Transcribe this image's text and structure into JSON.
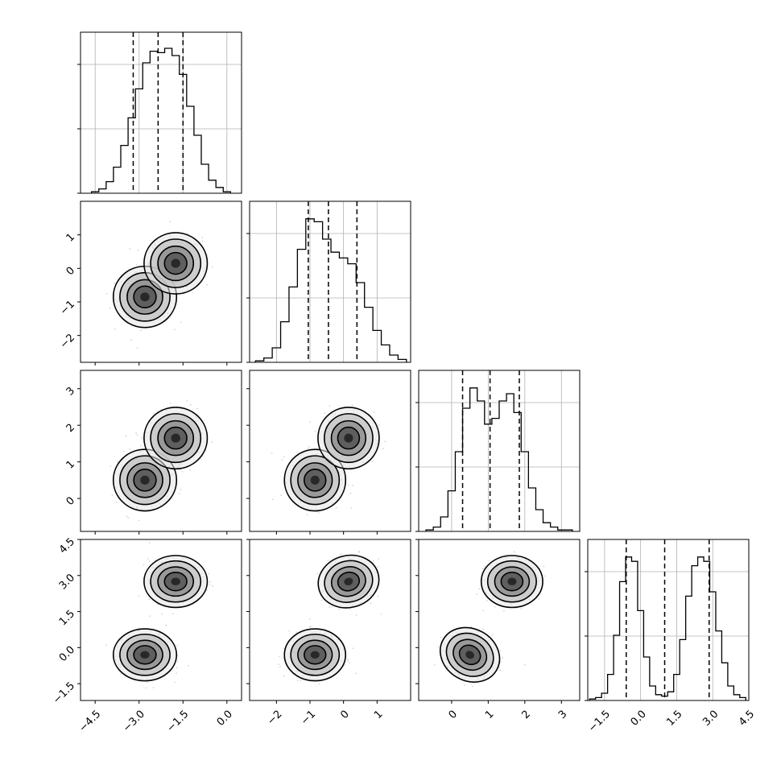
{
  "chart_data": {
    "type": "corner",
    "params": 4,
    "grid": true,
    "diagonal_histograms": [
      {
        "param": 0,
        "xlim": [
          -5.0,
          0.5
        ],
        "bins": [
          -4.5,
          -4.25,
          -4.0,
          -3.75,
          -3.5,
          -3.25,
          -3.0,
          -2.75,
          -2.5,
          -2.25,
          -2.0,
          -1.75,
          -1.5,
          -1.25,
          -1.0,
          -0.75,
          -0.5,
          -0.25,
          0.0
        ],
        "counts": [
          0.01,
          0.03,
          0.08,
          0.18,
          0.33,
          0.52,
          0.72,
          0.9,
          0.98,
          0.97,
          1.0,
          0.95,
          0.82,
          0.6,
          0.4,
          0.2,
          0.09,
          0.04,
          0.01
        ],
        "quantiles": [
          -3.2,
          -2.35,
          -1.5
        ]
      },
      {
        "param": 1,
        "xlim": [
          -2.8,
          2.0
        ],
        "bins": [
          -2.5,
          -2.25,
          -2.0,
          -1.75,
          -1.5,
          -1.25,
          -1.0,
          -0.75,
          -0.5,
          -0.25,
          0.0,
          0.25,
          0.5,
          0.75,
          1.0,
          1.25,
          1.5,
          1.75
        ],
        "counts": [
          0.01,
          0.03,
          0.1,
          0.28,
          0.52,
          0.78,
          0.99,
          0.97,
          0.85,
          0.76,
          0.72,
          0.68,
          0.55,
          0.38,
          0.22,
          0.12,
          0.05,
          0.02
        ],
        "quantiles": [
          -1.05,
          -0.45,
          0.4
        ]
      },
      {
        "param": 2,
        "xlim": [
          -0.9,
          3.5
        ],
        "bins": [
          -0.6,
          -0.4,
          -0.2,
          0.0,
          0.2,
          0.4,
          0.6,
          0.8,
          1.0,
          1.2,
          1.4,
          1.6,
          1.8,
          2.0,
          2.2,
          2.4,
          2.6,
          2.8,
          3.0,
          3.2
        ],
        "counts": [
          0.01,
          0.03,
          0.1,
          0.28,
          0.55,
          0.85,
          0.99,
          0.9,
          0.74,
          0.78,
          0.9,
          0.95,
          0.82,
          0.55,
          0.3,
          0.15,
          0.06,
          0.03,
          0.01,
          0.01
        ],
        "quantiles": [
          0.3,
          1.05,
          1.85
        ]
      },
      {
        "param": 3,
        "xlim": [
          -2.2,
          4.5
        ],
        "bins": [
          -2.0,
          -1.75,
          -1.5,
          -1.25,
          -1.0,
          -0.75,
          -0.5,
          -0.25,
          0.0,
          0.25,
          0.5,
          0.75,
          1.0,
          1.25,
          1.5,
          1.75,
          2.0,
          2.25,
          2.5,
          2.75,
          3.0,
          3.25,
          3.5,
          3.75,
          4.0,
          4.25
        ],
        "counts": [
          0.01,
          0.02,
          0.05,
          0.18,
          0.45,
          0.82,
          0.99,
          0.96,
          0.62,
          0.3,
          0.1,
          0.04,
          0.03,
          0.06,
          0.18,
          0.42,
          0.72,
          0.93,
          0.99,
          0.96,
          0.75,
          0.48,
          0.26,
          0.1,
          0.04,
          0.02
        ],
        "quantiles": [
          -0.6,
          1.0,
          2.85
        ]
      }
    ],
    "axis_ranges": [
      [
        -5.0,
        0.5
      ],
      [
        -2.8,
        2.0
      ],
      [
        -0.9,
        3.5
      ],
      [
        -2.2,
        4.5
      ]
    ],
    "ticks": [
      {
        "values": [
          -4.5,
          -3.0,
          -1.5,
          0.0
        ],
        "labels": [
          "−4.5",
          "−3.0",
          "−1.5",
          "0.0"
        ]
      },
      {
        "values": [
          -2,
          -1,
          0,
          1
        ],
        "labels": [
          "−2",
          "−1",
          "0",
          "1"
        ]
      },
      {
        "values": [
          0,
          1,
          2,
          3
        ],
        "labels": [
          "0",
          "1",
          "2",
          "3"
        ]
      },
      {
        "values": [
          -1.5,
          0.0,
          1.5,
          3.0,
          4.5
        ],
        "labels": [
          "−1.5",
          "0.0",
          "1.5",
          "3.0",
          "4.5"
        ]
      }
    ],
    "modes": {
      "description_free_centres": [
        [
          -2.8,
          -0.85,
          0.5,
          -0.3
        ],
        [
          -1.75,
          0.15,
          1.65,
          2.75
        ]
      ]
    }
  }
}
